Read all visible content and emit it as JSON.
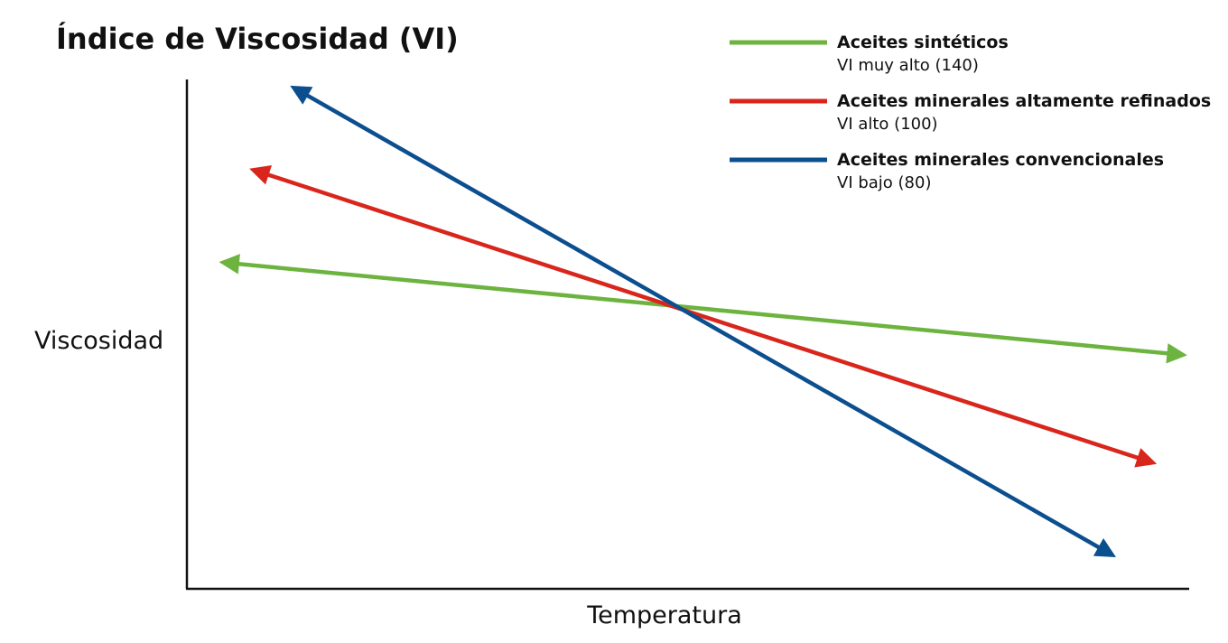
{
  "chart_data": {
    "type": "line",
    "title": "Índice de Viscosidad (VI)",
    "xlabel": "Temperatura",
    "ylabel": "Viscosidad",
    "xlim": [
      0,
      100
    ],
    "ylim": [
      0,
      100
    ],
    "grid": false,
    "legend_position": "top-right",
    "series": [
      {
        "name": "Aceites sintéticos",
        "sublabel": "VI muy alto (140)",
        "color": "#6db33f",
        "x": [
          4,
          99
        ],
        "y": [
          64,
          46
        ]
      },
      {
        "name": "Aceites minerales altamente refinados",
        "sublabel": "VI alto (100)",
        "color": "#d9261c",
        "x": [
          7,
          96
        ],
        "y": [
          82,
          25
        ]
      },
      {
        "name": "Aceites minerales convencionales",
        "sublabel": "VI bajo (80)",
        "color": "#0b4f8f",
        "x": [
          11,
          92
        ],
        "y": [
          98,
          7
        ]
      }
    ]
  }
}
